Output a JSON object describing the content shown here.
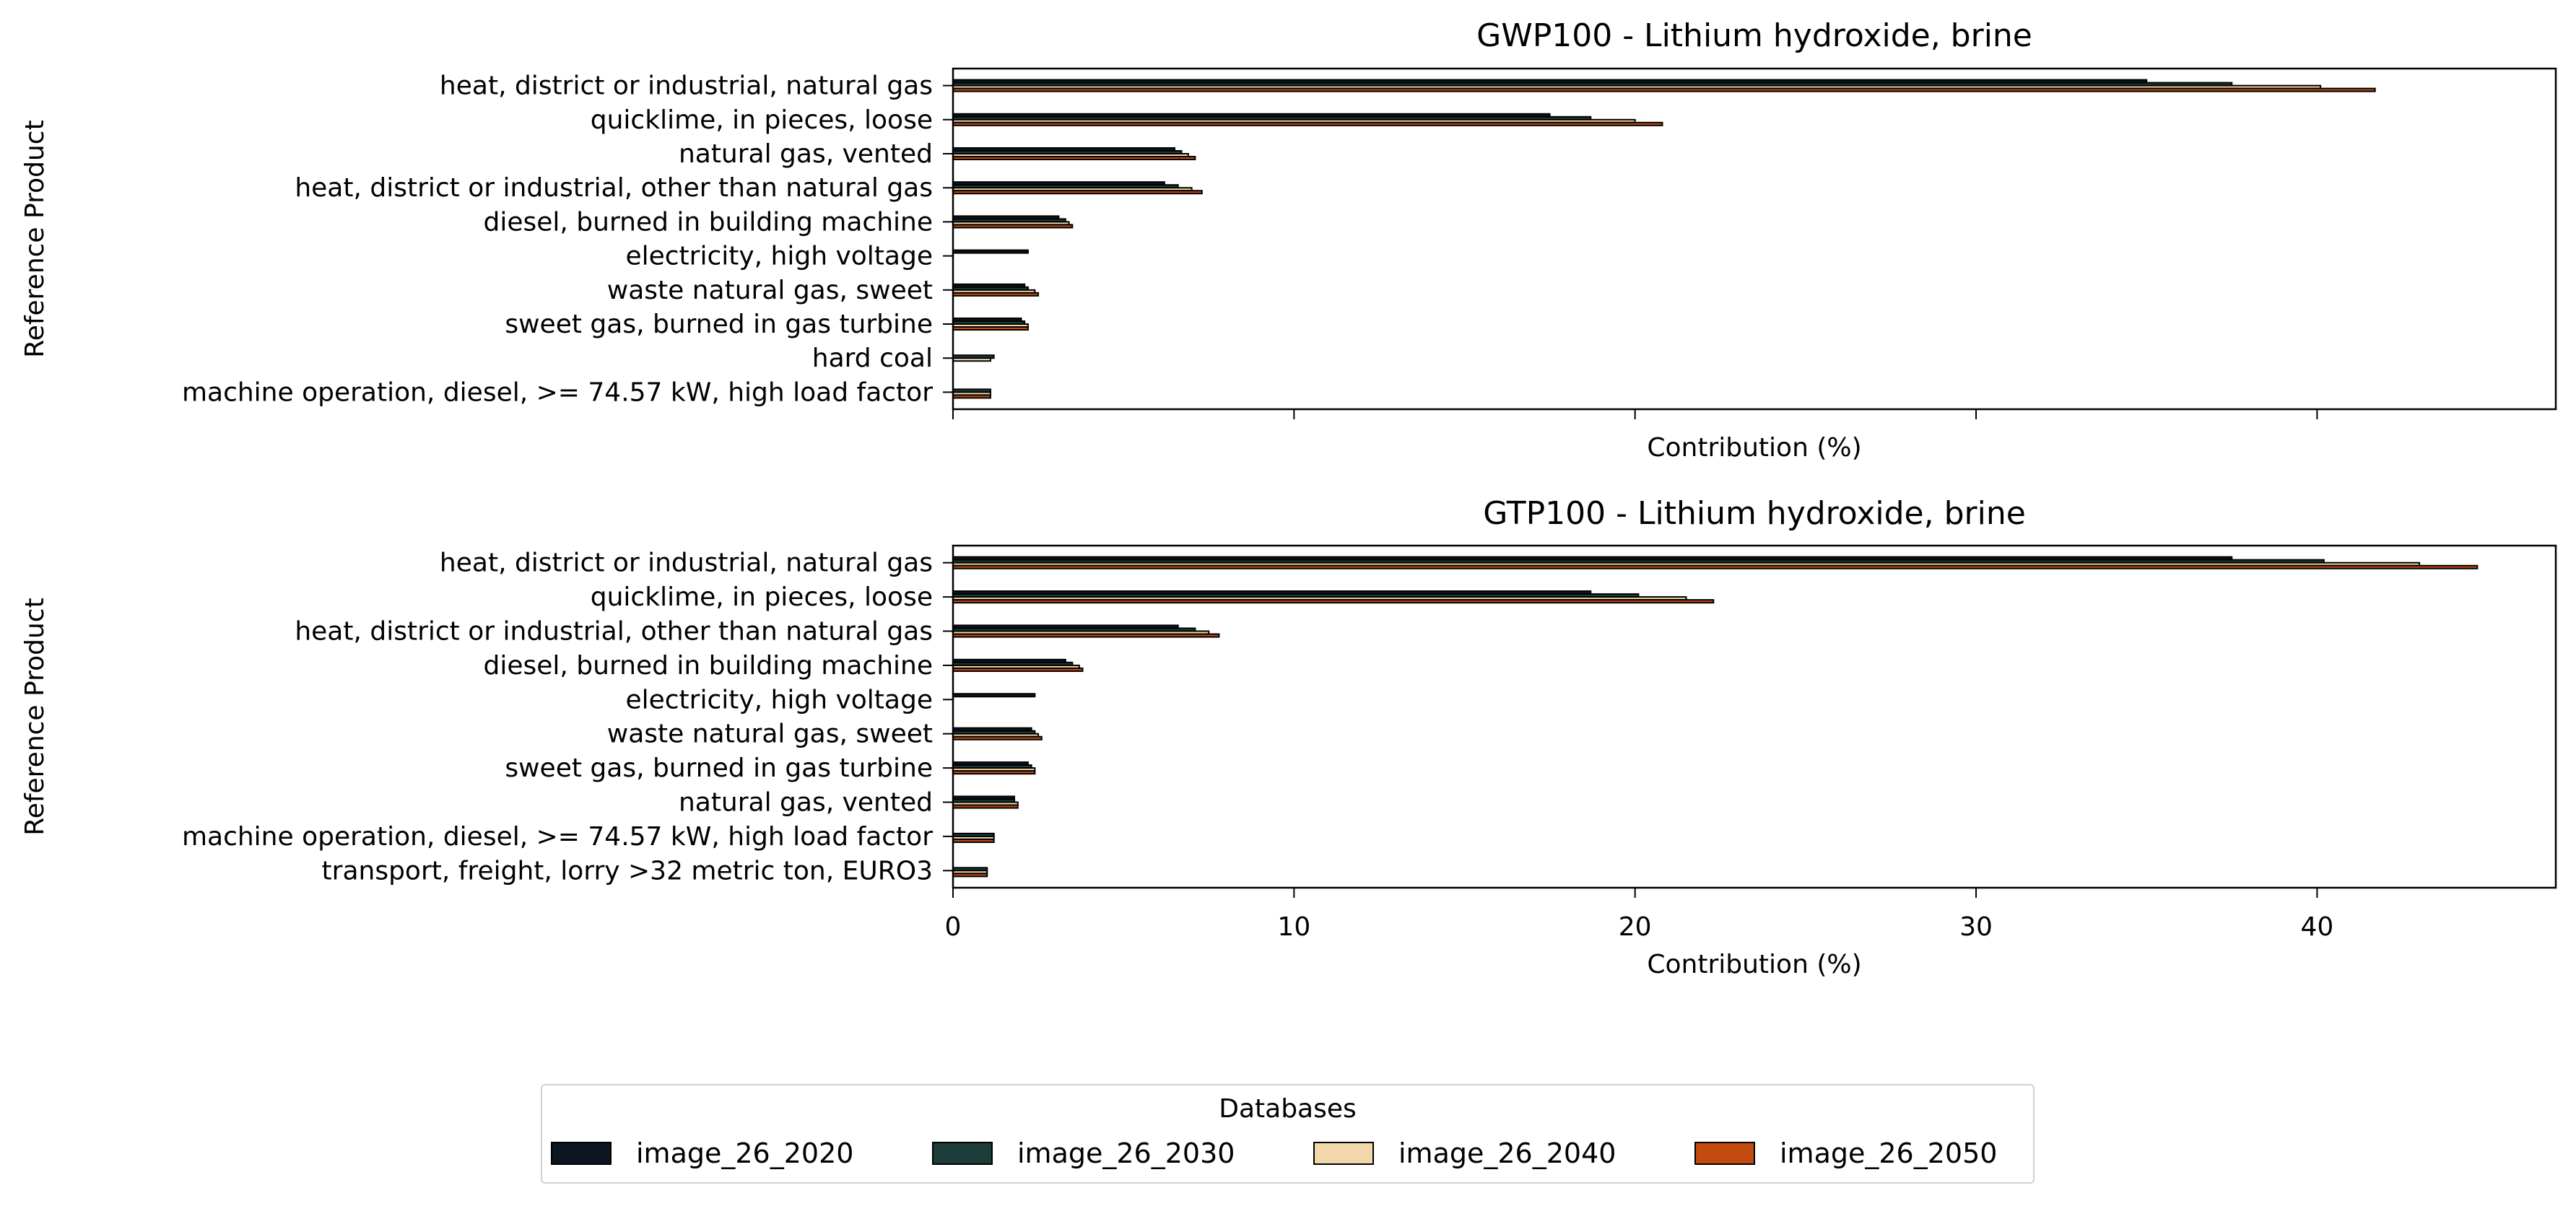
{
  "chart_data": [
    {
      "type": "bar",
      "orientation": "horizontal",
      "title": "GWP100 - Lithium hydroxide, brine",
      "xlabel": "Contribution (%)",
      "ylabel": "Reference Product",
      "xlim": [
        0,
        47
      ],
      "xticks": [
        0,
        10,
        20,
        30,
        40
      ],
      "show_tick_labels": false,
      "categories": [
        "heat, district or industrial, natural gas",
        "quicklime, in pieces, loose",
        "natural gas, vented",
        "heat, district or industrial, other than natural gas",
        "diesel, burned in building machine",
        "electricity, high voltage",
        "waste natural gas, sweet",
        "sweet gas, burned in gas turbine",
        "hard coal",
        "machine operation, diesel, >= 74.57 kW, high load factor"
      ],
      "series": [
        {
          "name": "image_26_2020",
          "values": [
            35.0,
            17.5,
            6.5,
            6.2,
            3.1,
            2.2,
            2.1,
            2.0,
            0,
            0
          ]
        },
        {
          "name": "image_26_2030",
          "values": [
            37.5,
            18.7,
            6.7,
            6.6,
            3.3,
            0,
            2.2,
            2.1,
            1.2,
            1.1
          ]
        },
        {
          "name": "image_26_2040",
          "values": [
            40.1,
            20.0,
            6.9,
            7.0,
            3.4,
            0,
            2.4,
            2.2,
            1.1,
            1.1
          ]
        },
        {
          "name": "image_26_2050",
          "values": [
            41.7,
            20.8,
            7.1,
            7.3,
            3.5,
            0,
            2.5,
            2.2,
            0,
            1.1
          ]
        }
      ]
    },
    {
      "type": "bar",
      "orientation": "horizontal",
      "title": "GTP100 - Lithium hydroxide, brine",
      "xlabel": "Contribution (%)",
      "ylabel": "Reference Product",
      "xlim": [
        0,
        47
      ],
      "xticks": [
        0,
        10,
        20,
        30,
        40
      ],
      "show_tick_labels": true,
      "categories": [
        "heat, district or industrial, natural gas",
        "quicklime, in pieces, loose",
        "heat, district or industrial, other than natural gas",
        "diesel, burned in building machine",
        "electricity, high voltage",
        "waste natural gas, sweet",
        "sweet gas, burned in gas turbine",
        "natural gas, vented",
        "machine operation, diesel, >= 74.57 kW, high load factor",
        "transport, freight, lorry >32 metric ton, EURO3"
      ],
      "series": [
        {
          "name": "image_26_2020",
          "values": [
            37.5,
            18.7,
            6.6,
            3.3,
            2.4,
            2.3,
            2.2,
            1.8,
            0,
            0
          ]
        },
        {
          "name": "image_26_2030",
          "values": [
            40.2,
            20.1,
            7.1,
            3.5,
            0,
            2.4,
            2.3,
            1.8,
            1.2,
            1.0
          ]
        },
        {
          "name": "image_26_2040",
          "values": [
            43.0,
            21.5,
            7.5,
            3.7,
            0,
            2.5,
            2.4,
            1.9,
            1.2,
            1.0
          ]
        },
        {
          "name": "image_26_2050",
          "values": [
            44.7,
            22.3,
            7.8,
            3.8,
            0,
            2.6,
            2.4,
            1.9,
            1.2,
            1.0
          ]
        }
      ]
    }
  ],
  "legend": {
    "title": "Databases",
    "placement": "bottom-center",
    "entries": [
      "image_26_2020",
      "image_26_2030",
      "image_26_2040",
      "image_26_2050"
    ]
  },
  "colors": {
    "image_26_2020": "#0b1620",
    "image_26_2030": "#1d3d3a",
    "image_26_2040": "#f2d7aa",
    "image_26_2050": "#c44b10",
    "edge": "#000000"
  }
}
